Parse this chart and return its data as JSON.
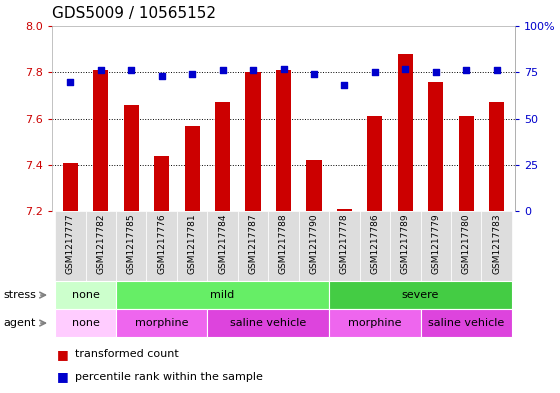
{
  "title": "GDS5009 / 10565152",
  "samples": [
    "GSM1217777",
    "GSM1217782",
    "GSM1217785",
    "GSM1217776",
    "GSM1217781",
    "GSM1217784",
    "GSM1217787",
    "GSM1217788",
    "GSM1217790",
    "GSM1217778",
    "GSM1217786",
    "GSM1217789",
    "GSM1217779",
    "GSM1217780",
    "GSM1217783"
  ],
  "bar_values": [
    7.41,
    7.81,
    7.66,
    7.44,
    7.57,
    7.67,
    7.8,
    7.81,
    7.42,
    7.21,
    7.61,
    7.88,
    7.76,
    7.61,
    7.67
  ],
  "percentile_values": [
    70,
    76,
    76,
    73,
    74,
    76,
    76,
    77,
    74,
    68,
    75,
    77,
    75,
    76,
    76
  ],
  "bar_bottom": 7.2,
  "ylim_left": [
    7.2,
    8.0
  ],
  "ylim_right": [
    0,
    100
  ],
  "yticks_left": [
    7.2,
    7.4,
    7.6,
    7.8,
    8.0
  ],
  "yticks_right": [
    0,
    25,
    50,
    75,
    100
  ],
  "ytick_labels_right": [
    "0",
    "25",
    "50",
    "75",
    "100%"
  ],
  "bar_color": "#cc0000",
  "dot_color": "#0000cc",
  "bg_color": "#ffffff",
  "tick_label_color_left": "#cc0000",
  "tick_label_color_right": "#0000cc",
  "title_fontsize": 11,
  "axis_fontsize": 8,
  "legend_fontsize": 8,
  "stress_defs": [
    {
      "label": "none",
      "start": 0,
      "end": 2,
      "color": "#ccffcc"
    },
    {
      "label": "mild",
      "start": 2,
      "end": 9,
      "color": "#66ee66"
    },
    {
      "label": "severe",
      "start": 9,
      "end": 15,
      "color": "#44cc44"
    }
  ],
  "agent_defs": [
    {
      "label": "none",
      "start": 0,
      "end": 2,
      "color": "#ffccff"
    },
    {
      "label": "morphine",
      "start": 2,
      "end": 5,
      "color": "#ee66ee"
    },
    {
      "label": "saline vehicle",
      "start": 5,
      "end": 9,
      "color": "#dd44dd"
    },
    {
      "label": "morphine",
      "start": 9,
      "end": 12,
      "color": "#ee66ee"
    },
    {
      "label": "saline vehicle",
      "start": 12,
      "end": 15,
      "color": "#dd44dd"
    }
  ],
  "xlim": [
    -0.6,
    14.6
  ],
  "x_total_range": 15.2
}
